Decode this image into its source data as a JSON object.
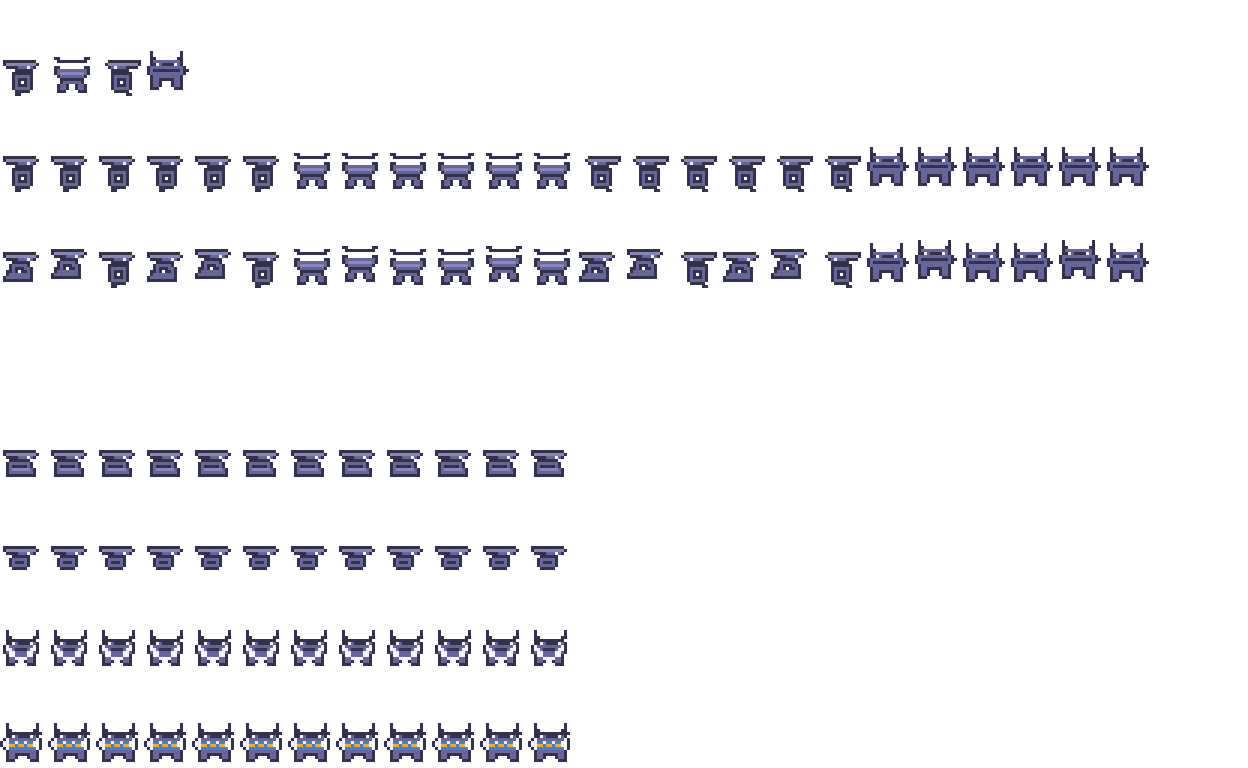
{
  "palette": {
    "outline": "#34324a",
    "body": "#66669a",
    "light": "#8888b8",
    "white": "#f4f4fa",
    "blue": "#3a82dc",
    "orange": "#f2aa2e",
    "background": "#ffffff"
  },
  "sprite_sheet": {
    "rows": [
      {
        "row": 1,
        "frames": [
          "side-left",
          "front",
          "side-right",
          "horned"
        ]
      },
      {
        "row": 2,
        "frames": [
          "side-left",
          "side-left",
          "side-left",
          "side-left",
          "side-left",
          "side-left",
          "front",
          "front",
          "front",
          "front",
          "front",
          "front",
          "side-right",
          "side-right",
          "side-right",
          "side-right",
          "side-right",
          "side-right",
          "horned",
          "horned",
          "horned",
          "horned",
          "horned",
          "horned"
        ]
      },
      {
        "row": 3,
        "frames": [
          "side-attack",
          "side-attack",
          "side-left",
          "side-attack",
          "side-attack",
          "side-left",
          "front",
          "front",
          "front",
          "front",
          "front",
          "front",
          "side-attack",
          "side-attack",
          "side-right",
          "side-attack",
          "side-attack",
          "side-right",
          "horned",
          "horned",
          "horned",
          "horned",
          "horned",
          "horned"
        ]
      },
      {
        "row": 4,
        "frames": []
      },
      {
        "row": 5,
        "frames": [
          "crouch",
          "crouch",
          "crouch",
          "crouch",
          "crouch",
          "crouch",
          "crouch",
          "crouch",
          "crouch",
          "crouch",
          "crouch",
          "crouch"
        ]
      },
      {
        "row": 6,
        "frames": [
          "small-side",
          "small-side",
          "small-side",
          "small-side",
          "small-side",
          "small-side",
          "small-side",
          "small-side",
          "small-side",
          "small-side",
          "small-side",
          "small-side"
        ]
      },
      {
        "row": 7,
        "frames": [
          "horned-white",
          "horned-white",
          "horned-white",
          "horned-white",
          "horned-white",
          "horned-white",
          "horned-white",
          "horned-white",
          "horned-white",
          "horned-white",
          "horned-white",
          "horned-white"
        ]
      },
      {
        "row": 8,
        "frames": [
          "horned-belt",
          "horned-belt",
          "horned-belt",
          "horned-belt",
          "horned-belt",
          "horned-belt",
          "horned-belt",
          "horned-belt",
          "horned-belt",
          "horned-belt",
          "horned-belt",
          "horned-belt"
        ]
      }
    ]
  }
}
